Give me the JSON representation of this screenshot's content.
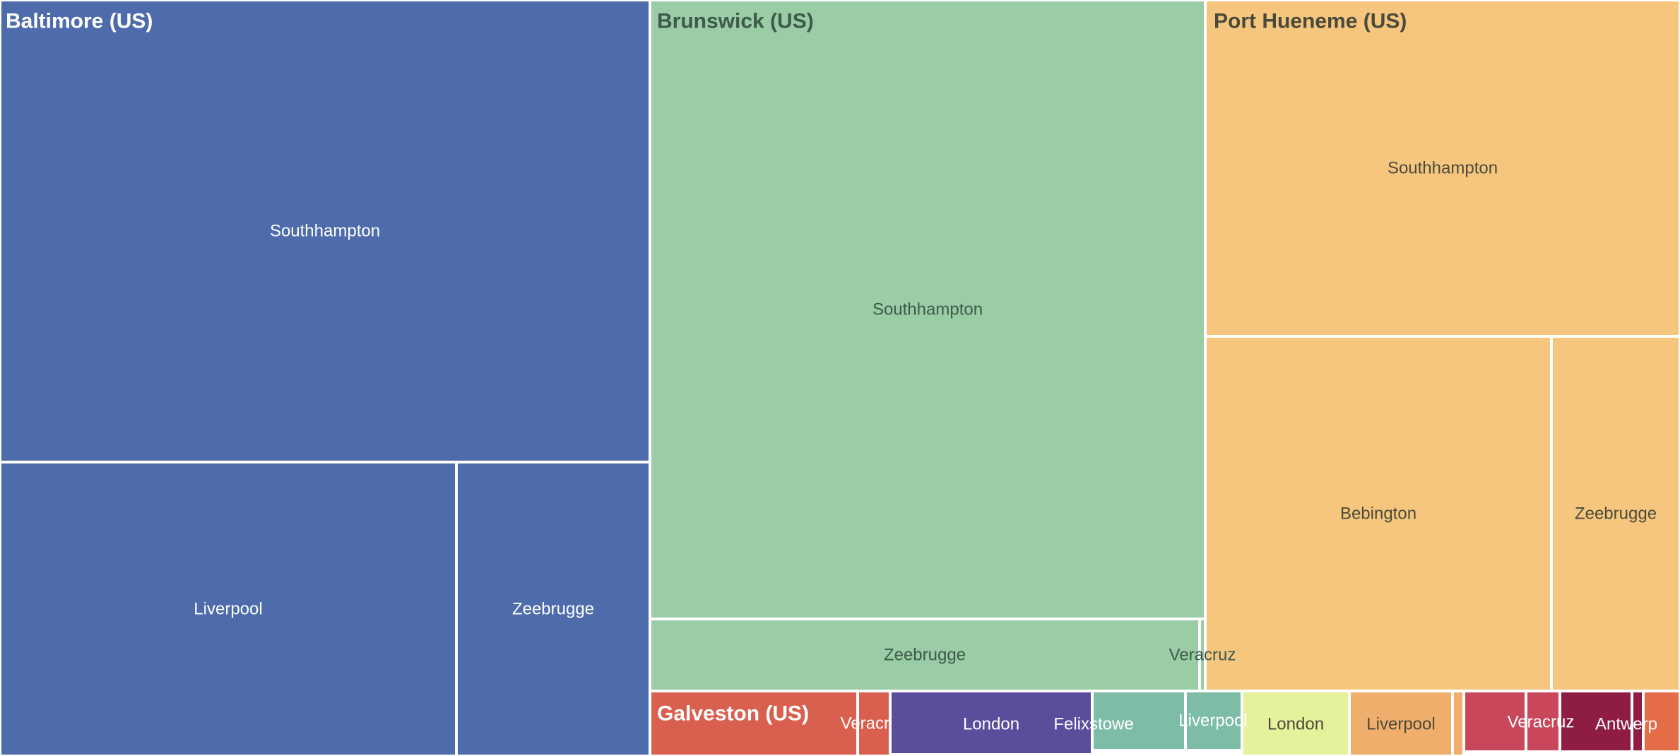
{
  "chart_data": {
    "type": "treemap",
    "title": "",
    "groups": [
      {
        "name": "Baltimore (US)",
        "color": "#4e6bab",
        "label_color": "#ffffff",
        "leaves": [
          {
            "name": "Southhampton",
            "value": 915
          },
          {
            "name": "Liverpool",
            "value": 431
          },
          {
            "name": "Zeebrugge",
            "value": 181
          }
        ]
      },
      {
        "name": "Brunswick (US)",
        "color": "#9acca5",
        "label_color": "#3d5a4a",
        "leaves": [
          {
            "name": "Southhampton",
            "value": 1045
          },
          {
            "name": "Zeebrugge",
            "value": 110
          },
          {
            "name": "Veracruz",
            "value": 2
          }
        ]
      },
      {
        "name": "Port Hueneme (US)",
        "color": "#f6c67f",
        "label_color": "#4a4a3a",
        "leaves": [
          {
            "name": "Southhampton",
            "value": 574
          },
          {
            "name": "Bebington",
            "value": 411
          },
          {
            "name": "Zeebrugge",
            "value": 152
          }
        ]
      },
      {
        "name": "Galveston (US)",
        "color": "#d95f4f",
        "label_color": "#ffffff",
        "leaves": [
          {
            "name": "",
            "value": 170
          },
          {
            "name": "Veracruz",
            "value": 26
          }
        ]
      }
    ],
    "small_tiles": [
      {
        "name": "London",
        "color": "#5a4e9c",
        "label_color": "#ffffff"
      },
      {
        "name": "Felixstowe",
        "color": "#7dbca6",
        "label_color": "#ffffff"
      },
      {
        "name": "Liverpool",
        "color": "#7dbca6",
        "label_color": "#ffffff"
      },
      {
        "name": "London",
        "color": "#e6f19c",
        "label_color": "#4a4a3a"
      },
      {
        "name": "Liverpool",
        "color": "#f0ae6c",
        "label_color": "#4a4a3a"
      },
      {
        "name": "",
        "color": "#f0ae6c",
        "label_color": "#4a4a3a"
      },
      {
        "name": "Veracruz",
        "color": "#c9475a",
        "label_color": "#ffffff"
      },
      {
        "name": "",
        "color": "#c9475a",
        "label_color": "#ffffff"
      },
      {
        "name": "Antwerp",
        "color": "#8e1c44",
        "label_color": "#ffffff"
      },
      {
        "name": "",
        "color": "#8e1c44",
        "label_color": "#ffffff"
      },
      {
        "name": "",
        "color": "#e46d48",
        "label_color": "#ffffff"
      }
    ]
  }
}
